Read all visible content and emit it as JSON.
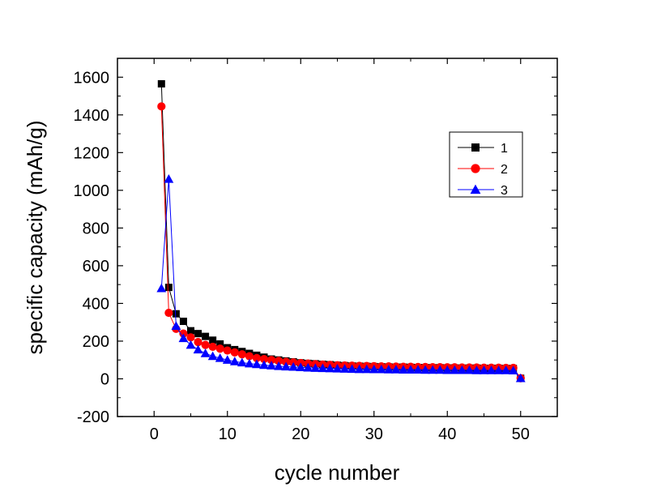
{
  "chart_data": {
    "type": "line",
    "title": "",
    "xlabel": "cycle number",
    "ylabel": "specific capacity (mAh/g)",
    "xlim": [
      -5,
      55
    ],
    "ylim": [
      -200,
      1700
    ],
    "xticks": [
      0,
      10,
      20,
      30,
      40,
      50
    ],
    "yticks": [
      -200,
      0,
      200,
      400,
      600,
      800,
      1000,
      1200,
      1400,
      1600
    ],
    "grid": false,
    "legend_position": "top-right",
    "x": [
      1,
      2,
      3,
      4,
      5,
      6,
      7,
      8,
      9,
      10,
      11,
      12,
      13,
      14,
      15,
      16,
      17,
      18,
      19,
      20,
      21,
      22,
      23,
      24,
      25,
      26,
      27,
      28,
      29,
      30,
      31,
      32,
      33,
      34,
      35,
      36,
      37,
      38,
      39,
      40,
      41,
      42,
      43,
      44,
      45,
      46,
      47,
      48,
      49,
      50
    ],
    "series": [
      {
        "name": "1",
        "color": "#000000",
        "marker": "square",
        "values": [
          1565,
          485,
          345,
          305,
          255,
          240,
          225,
          205,
          185,
          165,
          155,
          145,
          135,
          125,
          115,
          105,
          100,
          95,
          90,
          85,
          82,
          80,
          77,
          75,
          72,
          70,
          68,
          67,
          66,
          65,
          64,
          63,
          62,
          62,
          61,
          60,
          60,
          59,
          59,
          58,
          58,
          57,
          57,
          57,
          56,
          56,
          56,
          55,
          55,
          3
        ]
      },
      {
        "name": "2",
        "color": "#ff0000",
        "marker": "circle",
        "values": [
          1445,
          350,
          265,
          240,
          220,
          195,
          180,
          170,
          160,
          150,
          140,
          130,
          120,
          110,
          105,
          100,
          95,
          90,
          87,
          84,
          81,
          78,
          76,
          74,
          72,
          71,
          70,
          69,
          68,
          67,
          66,
          66,
          65,
          64,
          64,
          63,
          63,
          62,
          62,
          61,
          61,
          60,
          60,
          60,
          59,
          59,
          59,
          58,
          58,
          3
        ]
      },
      {
        "name": "3",
        "color": "#0000ff",
        "marker": "triangle",
        "values": [
          480,
          1060,
          280,
          215,
          180,
          155,
          135,
          120,
          110,
          100,
          92,
          86,
          81,
          77,
          73,
          70,
          67,
          65,
          63,
          61,
          59,
          57,
          56,
          55,
          54,
          53,
          52,
          51,
          51,
          50,
          50,
          49,
          49,
          48,
          48,
          48,
          47,
          47,
          47,
          46,
          46,
          46,
          46,
          45,
          45,
          45,
          45,
          45,
          44,
          3
        ]
      }
    ]
  }
}
